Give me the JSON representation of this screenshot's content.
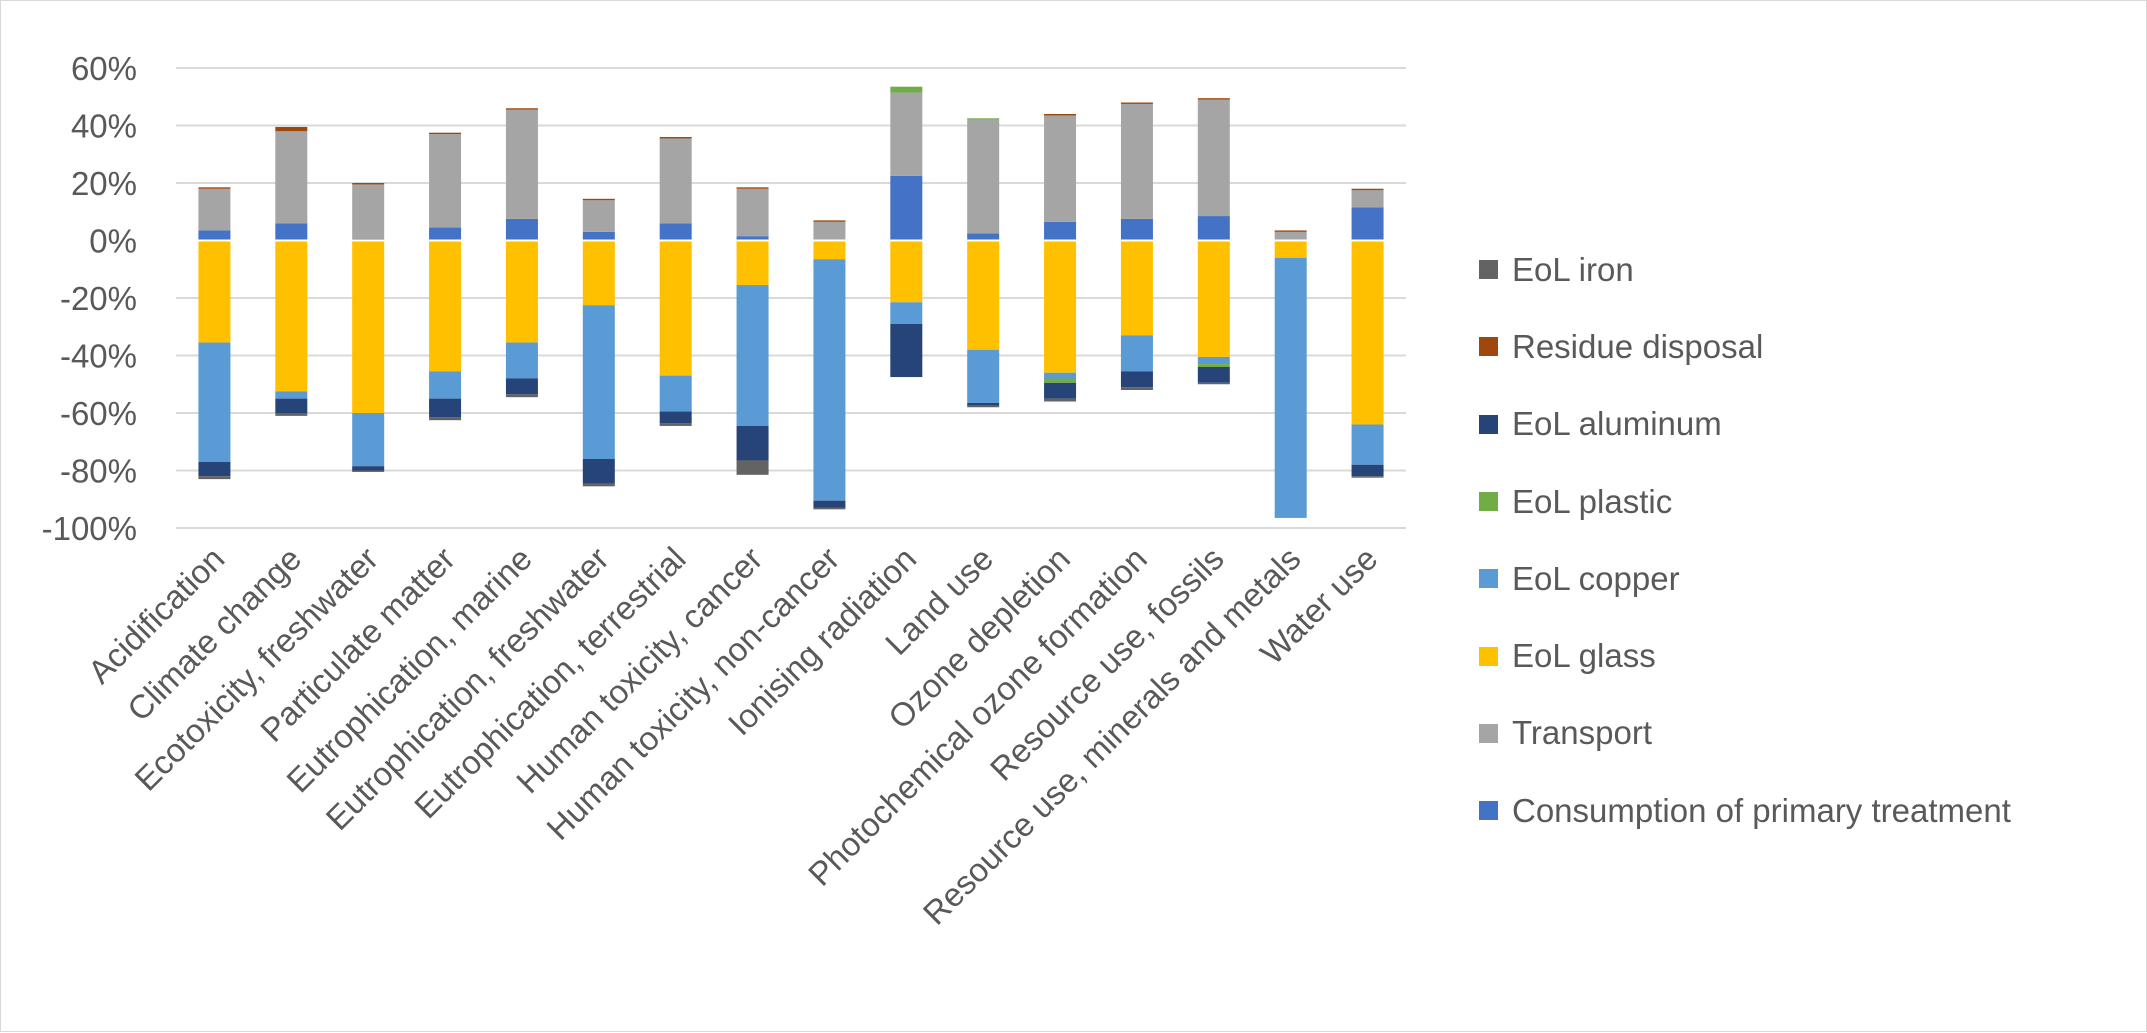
{
  "chart_data": {
    "type": "bar",
    "stacked": true,
    "title": "",
    "xlabel": "",
    "ylabel": "",
    "ylim": [
      -1.0,
      0.6
    ],
    "yticks": [
      0.6,
      0.4,
      0.2,
      0.0,
      -0.2,
      -0.4,
      -0.6,
      -0.8,
      -1.0
    ],
    "ytick_labels": [
      "60%",
      "40%",
      "20%",
      "0%",
      "-20%",
      "-40%",
      "-60%",
      "-80%",
      "-100%"
    ],
    "grid": true,
    "legend_position": "right",
    "categories": [
      "Acidification",
      "Climate change",
      "Ecotoxicity, freshwater",
      "Particulate matter",
      "Eutrophication, marine",
      "Eutrophication, freshwater",
      "Eutrophication, terrestrial",
      "Human toxicity, cancer",
      "Human toxicity, non-cancer",
      "Ionising radiation",
      "Land use",
      "Ozone depletion",
      "Photochemical ozone formation",
      "Resource use, fossils",
      "Resource use, minerals and metals",
      "Water use"
    ],
    "series": [
      {
        "name": "Consumption of primary treatment",
        "color": "#4472C4",
        "values": [
          0.035,
          0.06,
          0.005,
          0.045,
          0.075,
          0.03,
          0.06,
          0.015,
          0.0,
          0.225,
          0.025,
          0.065,
          0.075,
          0.085,
          0.0,
          0.115
        ]
      },
      {
        "name": "Transport",
        "color": "#A5A5A5",
        "values": [
          0.145,
          0.32,
          0.19,
          0.325,
          0.38,
          0.11,
          0.295,
          0.165,
          0.065,
          0.29,
          0.395,
          0.37,
          0.4,
          0.405,
          0.03,
          0.06
        ]
      },
      {
        "name": "EoL glass",
        "color": "#FFC000",
        "values": [
          -0.355,
          -0.525,
          -0.6,
          -0.455,
          -0.355,
          -0.225,
          -0.47,
          -0.155,
          -0.065,
          -0.215,
          -0.38,
          -0.46,
          -0.33,
          -0.405,
          -0.06,
          -0.64
        ]
      },
      {
        "name": "EoL copper",
        "color": "#5B9BD5",
        "values": [
          -0.415,
          -0.025,
          -0.185,
          -0.095,
          -0.125,
          -0.535,
          -0.125,
          -0.49,
          -0.84,
          -0.075,
          -0.185,
          -0.02,
          -0.125,
          -0.025,
          -0.905,
          -0.14
        ]
      },
      {
        "name": "EoL plastic",
        "color": "#70AD47",
        "values": [
          0.0,
          0.0,
          0.0,
          0.0,
          0.0,
          0.0,
          0.0,
          0.0,
          0.0,
          0.02,
          0.005,
          -0.015,
          0.0,
          -0.01,
          0.0,
          0.0
        ]
      },
      {
        "name": "EoL aluminum",
        "color": "#264478",
        "values": [
          -0.05,
          -0.05,
          -0.015,
          -0.065,
          -0.055,
          -0.085,
          -0.04,
          -0.12,
          -0.025,
          -0.185,
          -0.01,
          -0.055,
          -0.055,
          -0.055,
          0.0,
          -0.04
        ]
      },
      {
        "name": "Residue disposal",
        "color": "#9E480E",
        "values": [
          0.005,
          0.015,
          0.005,
          0.005,
          0.005,
          0.005,
          0.005,
          0.005,
          0.005,
          0.0,
          0.0,
          0.005,
          0.005,
          0.005,
          0.005,
          0.005
        ]
      },
      {
        "name": "EoL iron",
        "color": "#636363",
        "values": [
          -0.01,
          -0.01,
          -0.005,
          -0.01,
          -0.01,
          -0.01,
          -0.01,
          -0.05,
          -0.005,
          0.0,
          -0.005,
          -0.01,
          -0.01,
          -0.005,
          0.0,
          -0.005
        ]
      }
    ],
    "legend_order": [
      "EoL iron",
      "Residue disposal",
      "EoL aluminum",
      "EoL plastic",
      "EoL copper",
      "EoL glass",
      "Transport",
      "Consumption of primary treatment"
    ]
  }
}
